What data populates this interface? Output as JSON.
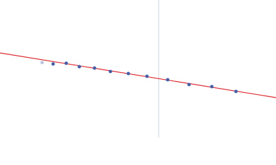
{
  "chart_data": {
    "type": "scatter",
    "x": [
      61,
      77,
      96,
      115,
      137,
      160,
      186,
      213,
      243,
      274,
      307,
      342
    ],
    "values": [
      109,
      107,
      108,
      103,
      101,
      96,
      93,
      89,
      84,
      77,
      74,
      67
    ],
    "point_colors": [
      "#b8c8e4",
      "#3f5fb0",
      "#3f5fb0",
      "#3f5fb0",
      "#3f5fb0",
      "#3f5fb0",
      "#3f5fb0",
      "#3f5fb0",
      "#3f5fb0",
      "#3f5fb0",
      "#3f5fb0",
      "#3f5fb0"
    ],
    "fit": {
      "x": [
        0,
        400
      ],
      "values": [
        123,
        58
      ],
      "color": "#e0282c"
    },
    "vline": {
      "x": 230,
      "color": "#c8d2ea"
    },
    "xlim": [
      0,
      400
    ],
    "ylim": [
      0,
      200
    ]
  }
}
